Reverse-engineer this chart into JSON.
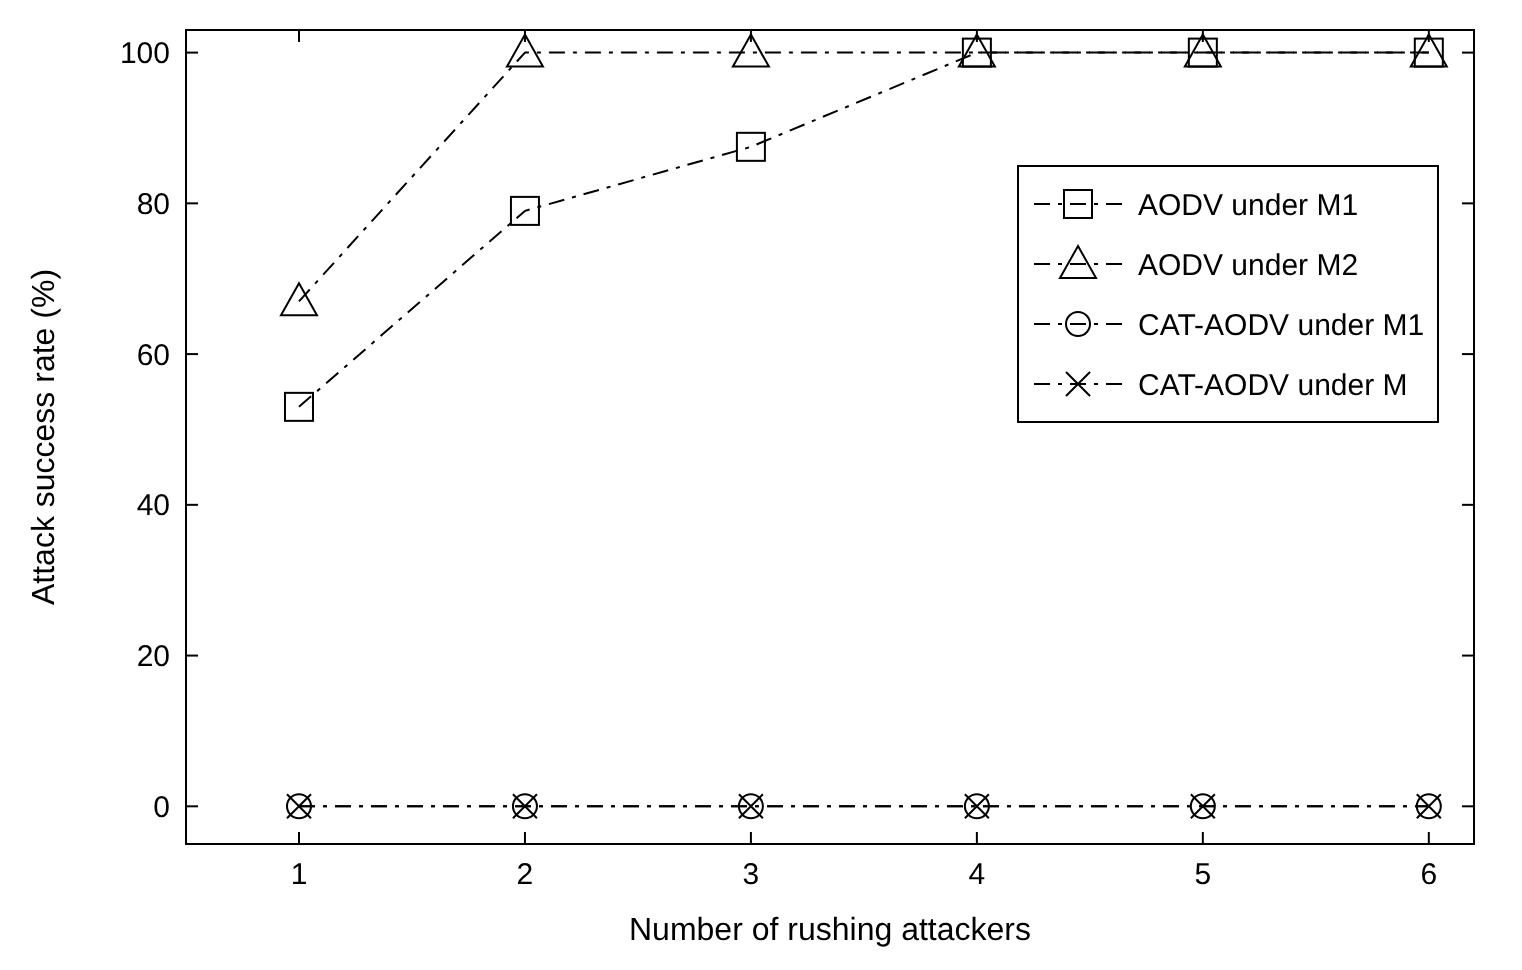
{
  "chart_data": {
    "type": "line",
    "xlabel": "Number of rushing attackers",
    "ylabel": "Attack success rate (%)",
    "x": [
      1,
      2,
      3,
      4,
      5,
      6
    ],
    "series": [
      {
        "name": "AODV under M1",
        "color": "#000000",
        "marker": "square",
        "values": [
          53,
          79,
          87.5,
          100,
          100,
          100
        ]
      },
      {
        "name": "AODV under M2",
        "color": "#000000",
        "marker": "triangle",
        "values": [
          67,
          100,
          100,
          100,
          100,
          100
        ]
      },
      {
        "name": "CAT-AODV under M1",
        "color": "#000000",
        "marker": "circle",
        "values": [
          0,
          0,
          0,
          0,
          0,
          0
        ]
      },
      {
        "name": "CAT-AODV under M",
        "color": "#000000",
        "marker": "cross",
        "values": [
          0,
          0,
          0,
          0,
          0,
          0
        ]
      }
    ],
    "xlim": [
      0.5,
      6.2
    ],
    "xticks": [
      1,
      2,
      3,
      4,
      5,
      6
    ],
    "ylim": [
      -5,
      103
    ],
    "yticks": [
      0,
      20,
      40,
      60,
      80,
      100
    ],
    "line_style": "dashed",
    "grid": false,
    "legend": "top right"
  }
}
